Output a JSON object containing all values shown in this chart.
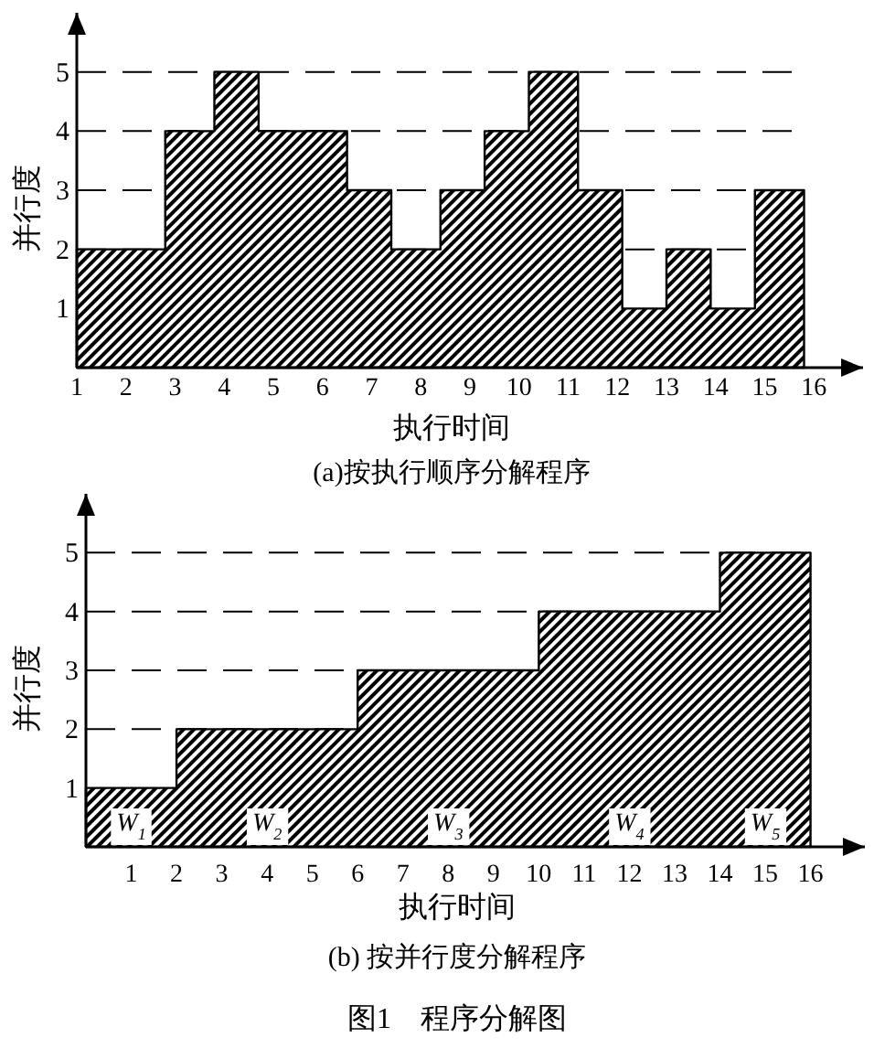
{
  "chart_data": [
    {
      "type": "area",
      "title": "(a)按执行顺序分解程序",
      "xlabel": "执行时间",
      "ylabel": "并行度",
      "color": "#000000",
      "x": [
        1,
        2.8,
        2.8,
        3.8,
        3.8,
        4.7,
        4.7,
        6.5,
        6.5,
        7.4,
        7.4,
        8.4,
        8.4,
        9.3,
        9.3,
        10.2,
        10.2,
        11.2,
        11.2,
        12.1,
        12.1,
        13,
        13,
        13.9,
        13.9,
        14.8,
        14.8,
        15.8
      ],
      "values": [
        2,
        2,
        4,
        4,
        5,
        5,
        4,
        4,
        3,
        3,
        2,
        2,
        3,
        3,
        4,
        4,
        5,
        5,
        3,
        3,
        1,
        1,
        2,
        2,
        1,
        1,
        3,
        3
      ],
      "xlim": [
        1,
        17
      ],
      "ylim": [
        0,
        6
      ],
      "xticks": [
        1,
        2,
        3,
        4,
        5,
        6,
        7,
        8,
        9,
        10,
        11,
        12,
        13,
        14,
        15,
        16
      ],
      "yticks": [
        1,
        2,
        3,
        4,
        5
      ],
      "ref_lines": [
        {
          "axis": "y",
          "value": 2,
          "line_style": "dashed"
        },
        {
          "axis": "y",
          "value": 3,
          "line_style": "dashed"
        },
        {
          "axis": "y",
          "value": 4,
          "line_style": "dashed"
        },
        {
          "axis": "y",
          "value": 5,
          "line_style": "dashed"
        }
      ]
    },
    {
      "type": "area",
      "title": "(b) 按并行度分解程序",
      "xlabel": "执行时间",
      "ylabel": "并行度",
      "color": "#000000",
      "x": [
        0,
        2,
        2,
        6,
        6,
        10,
        10,
        14,
        14,
        16
      ],
      "values": [
        1,
        1,
        2,
        2,
        3,
        3,
        4,
        4,
        5,
        5
      ],
      "xlim": [
        0,
        17.2
      ],
      "ylim": [
        0,
        6
      ],
      "xticks": [
        1,
        2,
        3,
        4,
        5,
        6,
        7,
        8,
        9,
        10,
        11,
        12,
        13,
        14,
        15,
        16
      ],
      "yticks": [
        1,
        2,
        3,
        4,
        5
      ],
      "ref_lines": [
        {
          "axis": "y",
          "value": 2,
          "line_style": "dashed"
        },
        {
          "axis": "y",
          "value": 3,
          "line_style": "dashed"
        },
        {
          "axis": "y",
          "value": 4,
          "line_style": "dashed"
        },
        {
          "axis": "y",
          "value": 5,
          "line_style": "dashed"
        }
      ],
      "annotations": [
        "W$_{1}$",
        "W$_{2}$",
        "W$_{3}$",
        "W$_{4}$",
        "W$_{5}$",
        "图1　程序分解图"
      ]
    }
  ]
}
